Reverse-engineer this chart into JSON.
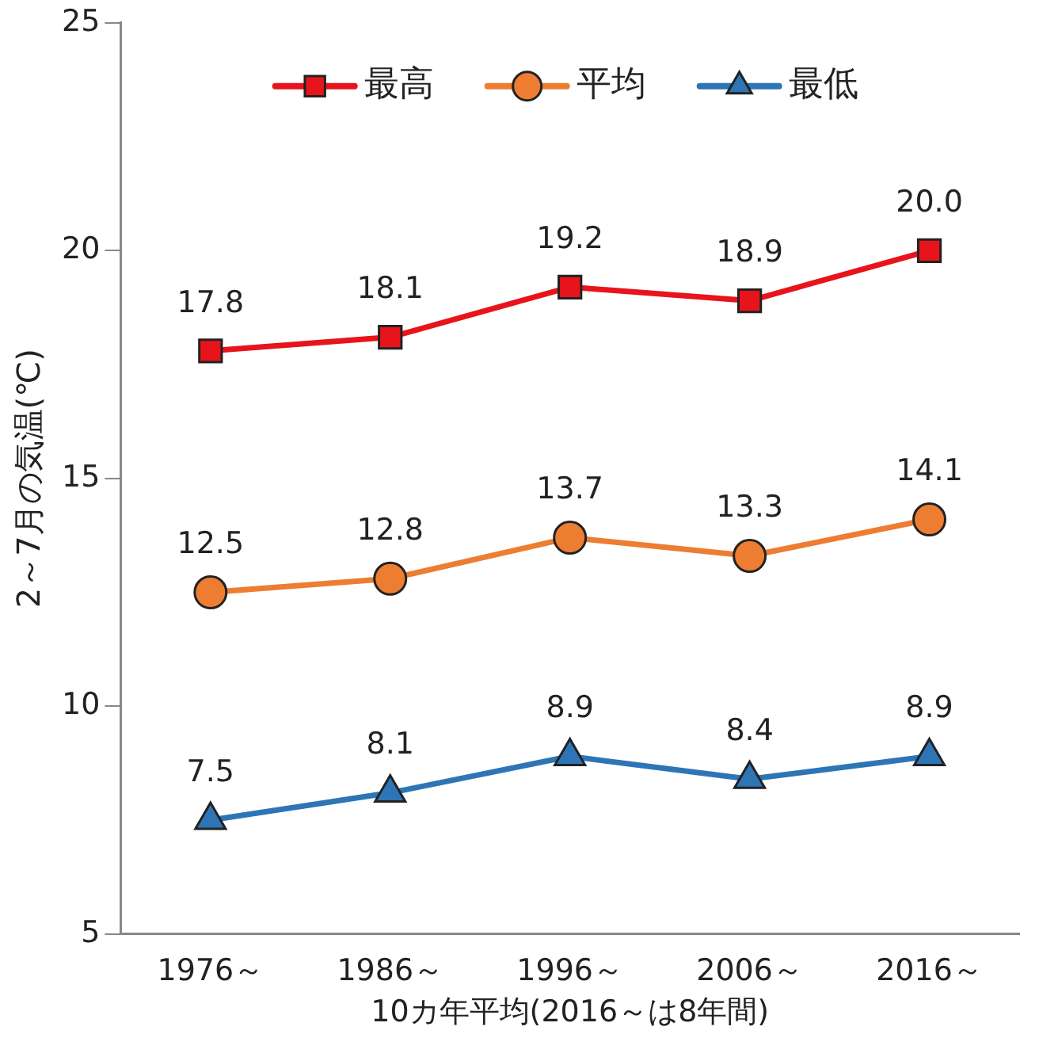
{
  "chart_data": {
    "type": "line",
    "xlabel": "10カ年平均(2016～は8年間)",
    "ylabel": "2～7月の気温(℃)",
    "categories": [
      "1976～",
      "1986～",
      "1996～",
      "2006～",
      "2016～"
    ],
    "series": [
      {
        "name": "最高",
        "color": "#e8141c",
        "marker": "square",
        "values": [
          17.8,
          18.1,
          19.2,
          18.9,
          20.0
        ],
        "value_labels": [
          "17.8",
          "18.1",
          "19.2",
          "18.9",
          "20.0"
        ]
      },
      {
        "name": "平均",
        "color": "#ed7d31",
        "marker": "circle",
        "values": [
          12.5,
          12.8,
          13.7,
          13.3,
          14.1
        ],
        "value_labels": [
          "12.5",
          "12.8",
          "13.7",
          "13.3",
          "14.1"
        ]
      },
      {
        "name": "最低",
        "color": "#2e75b6",
        "marker": "triangle",
        "values": [
          7.5,
          8.1,
          8.9,
          8.4,
          8.9
        ],
        "value_labels": [
          "7.5",
          "8.1",
          "8.9",
          "8.4",
          "8.9"
        ]
      }
    ],
    "ylim": [
      5,
      25
    ],
    "yticks": [
      5,
      10,
      15,
      20,
      25
    ],
    "grid": false,
    "legend": "top",
    "line_style": "solid"
  }
}
